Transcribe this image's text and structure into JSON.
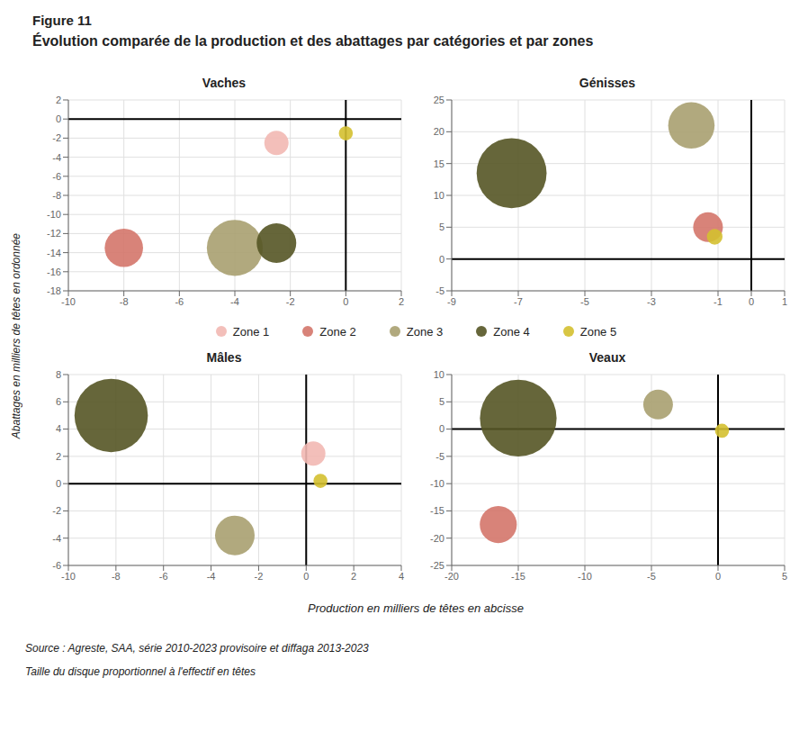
{
  "title": "Figure 11",
  "subtitle": "Évolution comparée de la production et des abattages par catégories et par zones",
  "xlabel": "Production  en  milliers de têtes en abcisse",
  "ylabel": "Abattages en milliers de têtes en ordonnée",
  "annotations": [
    "Source : Agreste, SAA, série 2010-2023 provisoire et diffaga 2013-2023",
    "Taille du disque proportionnel à l'effectif en têtes"
  ],
  "legend": "center",
  "chart_data": [
    {
      "type": "scatter",
      "title": "Vaches",
      "xlim": [
        -10,
        2
      ],
      "ylim": [
        -18,
        2
      ],
      "xticks": [
        -10,
        -8,
        -6,
        -4,
        -2,
        0,
        2
      ],
      "yticks": [
        -18,
        -16,
        -14,
        -12,
        -10,
        -8,
        -6,
        -4,
        -2,
        0,
        2
      ],
      "grid": true,
      "hline": 0,
      "vline": 0,
      "series": [
        {
          "name": "Zone 1",
          "color": "#f2b8b2",
          "x": [
            -2.5
          ],
          "values": [
            -2.5
          ],
          "sizes": [
            600
          ]
        },
        {
          "name": "Zone 2",
          "color": "#d4756a",
          "x": [
            -8.0
          ],
          "values": [
            -13.5
          ],
          "sizes": [
            1500
          ]
        },
        {
          "name": "Zone 3",
          "color": "#a8a070",
          "x": [
            -4.0
          ],
          "values": [
            -13.5
          ],
          "sizes": [
            3200
          ]
        },
        {
          "name": "Zone 4",
          "color": "#555525",
          "x": [
            -2.5
          ],
          "values": [
            -13.0
          ],
          "sizes": [
            1600
          ]
        },
        {
          "name": "Zone 5",
          "color": "#d4c030",
          "x": [
            0.0
          ],
          "values": [
            -1.5
          ],
          "sizes": [
            200
          ]
        }
      ]
    },
    {
      "type": "scatter",
      "title": "Génisses",
      "xlim": [
        -9,
        1
      ],
      "ylim": [
        -5,
        25
      ],
      "xticks": [
        -9,
        -7,
        -5,
        -3,
        -1,
        0,
        1
      ],
      "yticks": [
        -5,
        0,
        5,
        10,
        15,
        20,
        25
      ],
      "grid": true,
      "hline": 0,
      "vline": 0,
      "series": [
        {
          "name": "Zone 2",
          "color": "#d4756a",
          "x": [
            -1.3
          ],
          "values": [
            5.0
          ],
          "sizes": [
            900
          ]
        },
        {
          "name": "Zone 3",
          "color": "#a8a070",
          "x": [
            -1.8
          ],
          "values": [
            21.0
          ],
          "sizes": [
            2200
          ]
        },
        {
          "name": "Zone 4",
          "color": "#555525",
          "x": [
            -7.2
          ],
          "values": [
            13.5
          ],
          "sizes": [
            5000
          ]
        },
        {
          "name": "Zone 5",
          "color": "#d4c030",
          "x": [
            -1.1
          ],
          "values": [
            3.5
          ],
          "sizes": [
            250
          ]
        }
      ]
    },
    {
      "type": "scatter",
      "title": "Mâles",
      "xlim": [
        -10,
        4
      ],
      "ylim": [
        -6,
        8
      ],
      "xticks": [
        -10,
        -8,
        -6,
        -4,
        -2,
        0,
        2,
        4
      ],
      "yticks": [
        -6,
        -4,
        -2,
        0,
        2,
        4,
        6,
        8
      ],
      "grid": true,
      "hline": 0,
      "vline": 0,
      "series": [
        {
          "name": "Zone 1",
          "color": "#f2b8b2",
          "x": [
            0.3
          ],
          "values": [
            2.2
          ],
          "sizes": [
            600
          ]
        },
        {
          "name": "Zone 3",
          "color": "#a8a070",
          "x": [
            -3.0
          ],
          "values": [
            -3.8
          ],
          "sizes": [
            1600
          ]
        },
        {
          "name": "Zone 4",
          "color": "#555525",
          "x": [
            -8.2
          ],
          "values": [
            5.0
          ],
          "sizes": [
            5500
          ]
        },
        {
          "name": "Zone 5",
          "color": "#d4c030",
          "x": [
            0.6
          ],
          "values": [
            0.2
          ],
          "sizes": [
            200
          ]
        }
      ]
    },
    {
      "type": "scatter",
      "title": "Veaux",
      "xlim": [
        -20,
        5
      ],
      "ylim": [
        -25,
        10
      ],
      "xticks": [
        -20,
        -15,
        -10,
        -5,
        0,
        5
      ],
      "yticks": [
        -25,
        -20,
        -15,
        -10,
        -5,
        0,
        5,
        10
      ],
      "grid": true,
      "hline": 0,
      "vline": 0,
      "series": [
        {
          "name": "Zone 2",
          "color": "#d4756a",
          "x": [
            -16.5
          ],
          "values": [
            -17.5
          ],
          "sizes": [
            1400
          ]
        },
        {
          "name": "Zone 3",
          "color": "#a8a070",
          "x": [
            -4.5
          ],
          "values": [
            4.5
          ],
          "sizes": [
            900
          ]
        },
        {
          "name": "Zone 4",
          "color": "#555525",
          "x": [
            -15.0
          ],
          "values": [
            2.0
          ],
          "sizes": [
            6000
          ]
        },
        {
          "name": "Zone 5",
          "color": "#d4c030",
          "x": [
            0.3
          ],
          "values": [
            -0.3
          ],
          "sizes": [
            200
          ]
        }
      ]
    }
  ]
}
